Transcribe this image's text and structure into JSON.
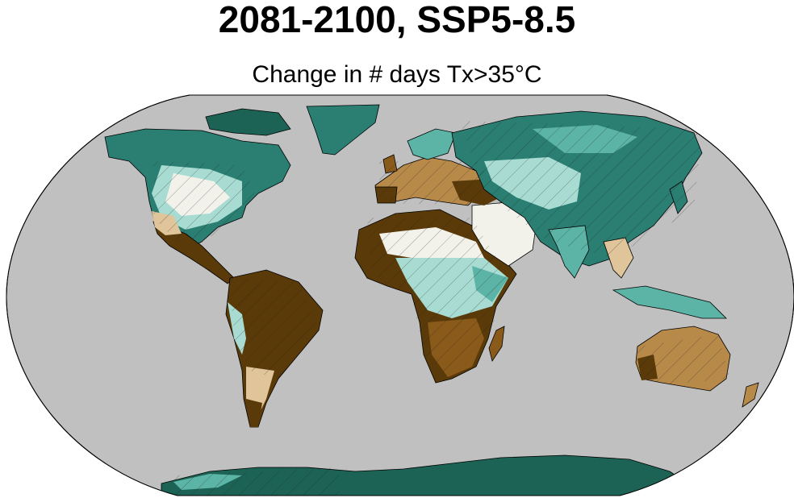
{
  "map": {
    "title": "2081-2100, SSP5-8.5",
    "subtitle": "Change in # days Tx>35°C",
    "projection": "robinson",
    "ocean_color": "#c0c0c0",
    "palette": {
      "strong_increase": "#5a3a08",
      "increase": "#8a5a1a",
      "moderate_increase": "#b88a4a",
      "slight_increase": "#e0c49a",
      "near_zero": "#f2f2ea",
      "slight_decrease": "#a8dcd2",
      "moderate_decrease": "#5cb4a6",
      "decrease": "#2a7f72",
      "strong_decrease": "#1c6355"
    },
    "hatching": "diagonal lines over most land regions"
  }
}
